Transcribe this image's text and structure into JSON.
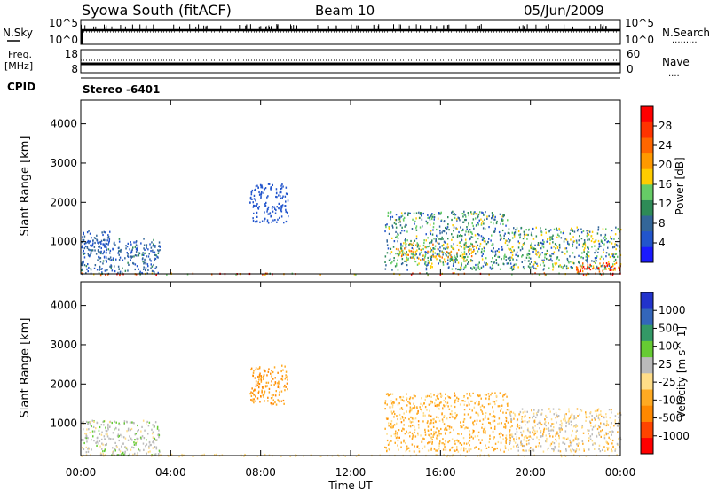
{
  "header": {
    "station": "Syowa South (fitACF)",
    "beam": "Beam 10",
    "date": "05/Jun/2009"
  },
  "strip_panels": {
    "nsky_label": "N.Sky",
    "nsearch_label": "N.Search",
    "nsearch_line": ".........",
    "tick_hi": "10^5",
    "tick_lo": "10^0",
    "freq_label": "Freq.",
    "freq_unit": "[MHz]",
    "freq_ticks": [
      "18",
      "8"
    ],
    "nave_label": "Nave",
    "nave_line": "....",
    "nave_ticks": [
      "60",
      "0"
    ],
    "cpid_label": "CPID",
    "cpid_value": "Stereo -6401"
  },
  "colors": {
    "power_scale": [
      "#1a1aff",
      "#2255cc",
      "#336699",
      "#2e8b57",
      "#66cc66",
      "#ffcc00",
      "#ff9900",
      "#ff6600",
      "#ff3300",
      "#ff0000"
    ],
    "velocity_scale": [
      "#ff0000",
      "#ff4400",
      "#ff8800",
      "#ffaa22",
      "#ffdd88",
      "#bbbbbb",
      "#66cc33",
      "#339966",
      "#3366bb",
      "#2233cc"
    ]
  },
  "chart_data": [
    {
      "type": "heatmap",
      "panel": "power",
      "ylabel": "Slant Range [km]",
      "yticks": [
        "1000",
        "2000",
        "3000",
        "4000"
      ],
      "ylim": [
        180,
        4600
      ],
      "xticks": [
        "00:00",
        "04:00",
        "08:00",
        "12:00",
        "16:00",
        "20:00",
        "00:00"
      ],
      "xlim": [
        0,
        24
      ],
      "colorbar_label": "Power [dB]",
      "colorbar_ticks": [
        "4",
        "8",
        "12",
        "16",
        "20",
        "24",
        "28"
      ],
      "clim": [
        0,
        30
      ],
      "regions": [
        {
          "t": [
            0.0,
            3.5
          ],
          "r": [
            200,
            1100
          ],
          "v": [
            3,
            10
          ]
        },
        {
          "t": [
            0.0,
            1.3
          ],
          "r": [
            600,
            1300
          ],
          "v": [
            3,
            8
          ]
        },
        {
          "t": [
            7.5,
            9.2
          ],
          "r": [
            1500,
            2500
          ],
          "v": [
            3,
            6
          ]
        },
        {
          "t": [
            13.5,
            19.0
          ],
          "r": [
            300,
            1800
          ],
          "v": [
            4,
            16
          ]
        },
        {
          "t": [
            14.0,
            17.5
          ],
          "r": [
            500,
            1000
          ],
          "v": [
            10,
            22
          ]
        },
        {
          "t": [
            19.0,
            24.0
          ],
          "r": [
            300,
            1400
          ],
          "v": [
            4,
            18
          ]
        },
        {
          "t": [
            22.0,
            24.0
          ],
          "r": [
            200,
            500
          ],
          "v": [
            18,
            30
          ]
        },
        {
          "t": [
            0.0,
            24.0
          ],
          "r": [
            180,
            220
          ],
          "v": [
            10,
            30
          ]
        }
      ]
    },
    {
      "type": "heatmap",
      "panel": "velocity",
      "ylabel": "Slant Range [km]",
      "yticks": [
        "1000",
        "2000",
        "3000",
        "4000"
      ],
      "ylim": [
        180,
        4600
      ],
      "xticks": [
        "00:00",
        "04:00",
        "08:00",
        "12:00",
        "16:00",
        "20:00",
        "00:00"
      ],
      "xlim": [
        0,
        24
      ],
      "xlabel": "Time UT",
      "colorbar_label": "Velocity [m s^-1]",
      "colorbar_ticks": [
        "-1000",
        "-500",
        "-100",
        "-25",
        "25",
        "100",
        "500",
        "1000"
      ],
      "clim": [
        -1200,
        1200
      ],
      "regions": [
        {
          "t": [
            0.0,
            3.5
          ],
          "r": [
            200,
            1100
          ],
          "v": [
            -50,
            300
          ]
        },
        {
          "t": [
            7.5,
            9.2
          ],
          "r": [
            1500,
            2500
          ],
          "v": [
            -600,
            -300
          ]
        },
        {
          "t": [
            13.5,
            19.0
          ],
          "r": [
            300,
            1800
          ],
          "v": [
            -500,
            -150
          ]
        },
        {
          "t": [
            19.0,
            24.0
          ],
          "r": [
            300,
            1400
          ],
          "v": [
            -400,
            200
          ]
        },
        {
          "t": [
            0.0,
            24.0
          ],
          "r": [
            180,
            230
          ],
          "v": [
            -80,
            -30
          ]
        }
      ]
    }
  ]
}
